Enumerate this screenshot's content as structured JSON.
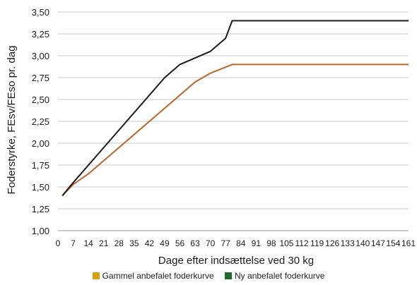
{
  "chart_data": {
    "type": "line",
    "xlabel": "Dage efter indsættelse ved 30 kg",
    "ylabel": "Foderstyrke, FEsv/FEso pr. dag",
    "ylim": [
      1.0,
      3.5
    ],
    "xlim": [
      0,
      161
    ],
    "y_ticks": [
      "1,00",
      "1,25",
      "1,50",
      "1,75",
      "2,00",
      "2,25",
      "2,50",
      "2,75",
      "3,00",
      "3,25",
      "3,50"
    ],
    "x_ticks": [
      "0",
      "7",
      "14",
      "21",
      "28",
      "35",
      "42",
      "49",
      "56",
      "63",
      "70",
      "77",
      "84",
      "91",
      "98",
      "105",
      "112",
      "119",
      "126",
      "133",
      "140",
      "147",
      "154",
      "161"
    ],
    "grid": "horizontal",
    "legend_position": "bottom",
    "series": [
      {
        "name": "Gammel anbefalet foderkurve",
        "legend_color": "#d4a017",
        "line_color": "#b8652f",
        "points": [
          [
            2,
            1.4
          ],
          [
            7,
            1.53
          ],
          [
            14,
            1.65
          ],
          [
            49,
            2.4
          ],
          [
            63,
            2.7
          ],
          [
            70,
            2.8
          ],
          [
            80,
            2.9
          ],
          [
            161,
            2.9
          ]
        ]
      },
      {
        "name": "Ny anbefalet foderkurve",
        "legend_color": "#1e6b2e",
        "line_color": "#1c1c1c",
        "points": [
          [
            2,
            1.4
          ],
          [
            7,
            1.55
          ],
          [
            49,
            2.75
          ],
          [
            56,
            2.9
          ],
          [
            70,
            3.05
          ],
          [
            77,
            3.2
          ],
          [
            80,
            3.4
          ],
          [
            161,
            3.4
          ]
        ]
      }
    ]
  }
}
